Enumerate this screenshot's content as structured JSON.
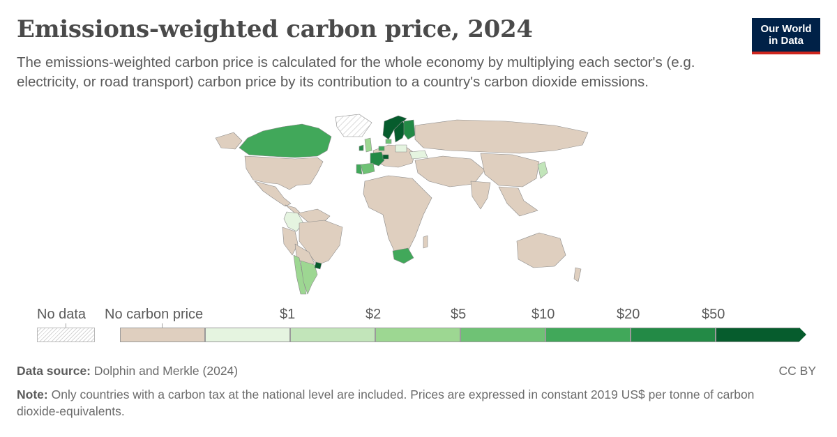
{
  "header": {
    "title": "Emissions-weighted carbon price, 2024",
    "subtitle": "The emissions-weighted carbon price is calculated for the whole economy by multiplying each sector's (e.g. electricity, or road transport) carbon price by its contribution to a country's carbon dioxide emissions."
  },
  "logo": {
    "line1": "Our World",
    "line2": "in Data",
    "bg_color": "#002147",
    "accent_color": "#ce261e"
  },
  "map_data": {
    "type": "choropleth",
    "colors": {
      "no_data": "#ffffff",
      "no_carbon_price": "#dfcfbf",
      "bin_0_1": "#e5f4e0",
      "bin_1_2": "#c2e5ba",
      "bin_2_5": "#9dd792",
      "bin_5_10": "#6fc275",
      "bin_10_20": "#41a85a",
      "bin_20_50": "#238a46",
      "bin_50_plus": "#065c2d",
      "border": "#8a8a8a"
    },
    "regions": [
      {
        "name": "Canada",
        "bin": "bin_10_20"
      },
      {
        "name": "United States",
        "bin": "no_carbon_price"
      },
      {
        "name": "Greenland",
        "bin": "no_data"
      },
      {
        "name": "Colombia",
        "bin": "bin_0_1"
      },
      {
        "name": "Chile",
        "bin": "bin_2_5"
      },
      {
        "name": "Argentina",
        "bin": "bin_2_5"
      },
      {
        "name": "Uruguay",
        "bin": "bin_50_plus"
      },
      {
        "name": "South Africa",
        "bin": "bin_10_20"
      },
      {
        "name": "France",
        "bin": "bin_20_50"
      },
      {
        "name": "Norway",
        "bin": "bin_50_plus"
      },
      {
        "name": "Sweden",
        "bin": "bin_50_plus"
      },
      {
        "name": "Finland",
        "bin": "bin_20_50"
      },
      {
        "name": "Ireland",
        "bin": "bin_20_50"
      },
      {
        "name": "United Kingdom",
        "bin": "bin_2_5"
      },
      {
        "name": "Spain",
        "bin": "bin_5_10"
      },
      {
        "name": "Portugal",
        "bin": "bin_10_20"
      },
      {
        "name": "Switzerland",
        "bin": "bin_50_plus"
      },
      {
        "name": "Denmark",
        "bin": "bin_5_10"
      },
      {
        "name": "Netherlands",
        "bin": "bin_10_20"
      },
      {
        "name": "Poland",
        "bin": "bin_0_1"
      },
      {
        "name": "Ukraine",
        "bin": "bin_0_1"
      },
      {
        "name": "Japan",
        "bin": "bin_1_2"
      }
    ]
  },
  "legend": {
    "no_data_label": "No data",
    "no_carbon_price_label": "No carbon price",
    "ticks": [
      "$1",
      "$2",
      "$5",
      "$10",
      "$20",
      "$50"
    ]
  },
  "footer": {
    "source_label": "Data source:",
    "source_text": "Dolphin and Merkle (2024)",
    "license": "CC BY",
    "note_label": "Note:",
    "note_text": "Only countries with a carbon tax at the national level are included. Prices are expressed in constant 2019 US$ per tonne of carbon dioxide-equivalents."
  }
}
